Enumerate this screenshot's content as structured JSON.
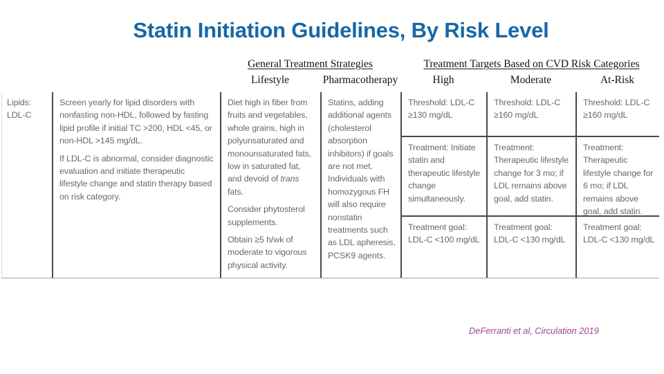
{
  "title": "Statin Initiation Guidelines, By Risk Level",
  "colors": {
    "title_blue": "#1767A7",
    "table_text_gray": "#5E6A72",
    "grid_line": "#46494D",
    "citation_plum": "#9C4192",
    "background": "#FFFFFE"
  },
  "headers": {
    "general_group": "General Treatment Strategies",
    "targets_group": "Treatment Targets Based on CVD Risk Categories",
    "lifestyle": "Lifestyle",
    "pharmacotherapy": "Pharmacotherapy",
    "high": "High",
    "moderate": "Moderate",
    "at_risk": "At-Risk"
  },
  "table": {
    "row_label_line1": "Lipids:",
    "row_label_line2": "LDL-C",
    "screening": {
      "p1": "Screen yearly for lipid disorders with nonfasting non-HDL, followed by fasting lipid profile if initial TC >200, HDL <45, or non-HDL >145 mg/dL.",
      "p2": "If LDL-C is abnormal, consider diagnostic evaluation and initiate therapeutic lifestyle change and statin therapy based on risk category."
    },
    "lifestyle": {
      "p1_before": "Diet high in fiber from fruits and vegetables, whole grains, high in polyunsaturated and monounsaturated fats, low in saturated fat, and devoid of ",
      "p1_italic": "trans",
      "p1_after": " fats.",
      "p2": "Consider phytosterol supplements.",
      "p3": "Obtain ≥5 h/wk of moderate to vigorous physical activity."
    },
    "pharmacotherapy": "Statins, adding additional agents (cholesterol absorption inhibitors) if goals are not met. Individuals with homozygous FH will also require nonstatin treatments such as LDL apheresis, PCSK9 agents.",
    "risk_columns": [
      {
        "name": "High",
        "threshold": "Threshold: LDL-C ≥130 mg/dL",
        "treatment": "Treatment: Initiate statin and therapeutic lifestyle change simultaneously.",
        "goal": "Treatment goal: LDL-C <100 mg/dL"
      },
      {
        "name": "Moderate",
        "threshold": "Threshold: LDL-C ≥160 mg/dL",
        "treatment": "Treatment: Therapeutic lifestyle change for 3 mo; if LDL remains above goal, add statin.",
        "goal": "Treatment goal: LDL-C <130 mg/dL"
      },
      {
        "name": "At-Risk",
        "threshold": "Threshold: LDL-C ≥160 mg/dL",
        "treatment": "Treatment: Therapeutic lifestyle change for 6 mo; if LDL remains above goal, add statin.",
        "goal": "Treatment goal: LDL-C <130 mg/dL"
      }
    ]
  },
  "citation": "DeFerranti et al, Circulation 2019"
}
